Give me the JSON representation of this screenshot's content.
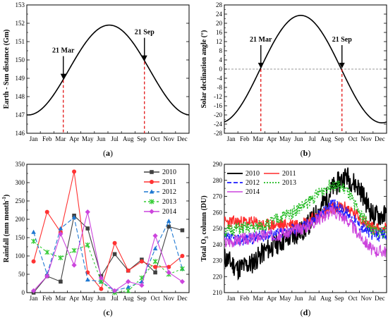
{
  "chart_data": [
    {
      "type": "line",
      "caption_letter": "a",
      "ylabel": "Earth - Sun distance (Gm)",
      "categories": [
        "Jan",
        "Feb",
        "Mar",
        "Apr",
        "May",
        "Jun",
        "Jul",
        "Aug",
        "Sep",
        "Oct",
        "Nov",
        "Dec"
      ],
      "ylim": [
        146,
        153
      ],
      "yticks": [
        146,
        147,
        148,
        149,
        150,
        151,
        152,
        153
      ],
      "series": [
        {
          "curve": "cosine",
          "min": 147.0,
          "max": 151.9,
          "peak_month": 6.1,
          "color": "#000000"
        }
      ],
      "annotations": [
        {
          "label": "21 Mar",
          "x": 2.7,
          "y": 148.9,
          "arrow": true,
          "dashed_line": true,
          "color_line": "#e00000"
        },
        {
          "label": "21 Sep",
          "x": 8.7,
          "y": 149.9,
          "arrow": true,
          "dashed_line": true,
          "color_line": "#e00000"
        }
      ]
    },
    {
      "type": "line",
      "caption_letter": "b",
      "ylabel": "Solar declination angle (°)",
      "categories": [
        "Jan",
        "Feb",
        "Mar",
        "Apr",
        "May",
        "Jun",
        "Jul",
        "Aug",
        "Sep",
        "Oct",
        "Nov",
        "Dec"
      ],
      "ylim": [
        -28,
        28
      ],
      "yticks": [
        -28,
        -24,
        -20,
        -16,
        -12,
        -8,
        -4,
        0,
        4,
        8,
        12,
        16,
        20,
        24,
        28
      ],
      "zero_line": true,
      "series": [
        {
          "curve": "cosine",
          "min": -23.44,
          "max": 23.44,
          "peak_month": 5.65,
          "color": "#000000"
        }
      ],
      "annotations": [
        {
          "label": "21 Mar",
          "x": 2.7,
          "y": 0,
          "arrow": true,
          "dashed_line": true,
          "color_line": "#e00000"
        },
        {
          "label": "21 Sep",
          "x": 8.7,
          "y": 0,
          "arrow": true,
          "dashed_line": true,
          "color_line": "#e00000"
        }
      ]
    },
    {
      "type": "line",
      "caption_letter": "c",
      "ylabel": "Rainfall (mm month",
      "ylabel_sup": "-1",
      "ylabel_end": ")",
      "categories": [
        "Jan",
        "Feb",
        "Mar",
        "Apr",
        "May",
        "Jun",
        "Jul",
        "Aug",
        "Sep",
        "Oct",
        "Nov",
        "Dec"
      ],
      "ylim": [
        0,
        350
      ],
      "yticks": [
        0,
        50,
        100,
        150,
        200,
        250,
        300,
        350
      ],
      "legend": "top-right",
      "series": [
        {
          "name": "2010",
          "color": "#404040",
          "marker": "square",
          "dash": "",
          "values": [
            0,
            45,
            30,
            210,
            175,
            45,
            105,
            60,
            90,
            55,
            180,
            170
          ]
        },
        {
          "name": "2011",
          "color": "#ff3333",
          "marker": "circle",
          "dash": "",
          "values": [
            85,
            220,
            165,
            330,
            55,
            10,
            135,
            60,
            85,
            70,
            70,
            100
          ]
        },
        {
          "name": "2012",
          "color": "#1e78d2",
          "marker": "triangle",
          "dash": "6,3",
          "values": [
            165,
            50,
            175,
            205,
            35,
            30,
            5,
            15,
            30,
            120,
            195,
            65
          ]
        },
        {
          "name": "2013",
          "color": "#33cc33",
          "marker": "star",
          "dash": "3,3",
          "values": [
            140,
            110,
            95,
            115,
            130,
            30,
            0,
            5,
            40,
            85,
            50,
            65
          ]
        },
        {
          "name": "2014",
          "color": "#cc44dd",
          "marker": "diamond",
          "dash": "",
          "values": [
            5,
            45,
            160,
            75,
            220,
            40,
            5,
            30,
            20,
            155,
            55,
            30
          ]
        }
      ]
    },
    {
      "type": "line",
      "caption_letter": "d",
      "ylabel": "Total O",
      "ylabel_sub": "3",
      "ylabel_end": " column (DU)",
      "categories": [
        "Jan",
        "Feb",
        "Mar",
        "Apr",
        "May",
        "Jun",
        "Jul",
        "Aug",
        "Sep",
        "Oct",
        "Nov",
        "Dec"
      ],
      "ylim": [
        210,
        290
      ],
      "yticks": [
        210,
        220,
        230,
        240,
        250,
        260,
        270,
        280,
        290
      ],
      "legend": "top-left",
      "series": [
        {
          "name": "2010",
          "color": "#000000",
          "dash": "",
          "lw": 1.6,
          "baseline": [
            232,
            225,
            228,
            236,
            241,
            245,
            250,
            261,
            275,
            283,
            275,
            258
          ],
          "noise": 7,
          "seed": 11
        },
        {
          "name": "2011",
          "color": "#ff2a2a",
          "dash": "",
          "lw": 1.3,
          "baseline": [
            254,
            254,
            254,
            252,
            252,
            253,
            254,
            258,
            263,
            263,
            257,
            250
          ],
          "noise": 4,
          "seed": 23
        },
        {
          "name": "2012",
          "color": "#1a1aff",
          "dash": "6,3",
          "lw": 1.4,
          "baseline": [
            244,
            243,
            244,
            246,
            247,
            249,
            252,
            258,
            265,
            260,
            252,
            246
          ],
          "noise": 4,
          "seed": 37
        },
        {
          "name": "2013",
          "color": "#22bb22",
          "dash": "2,2",
          "lw": 1.4,
          "baseline": [
            248,
            250,
            250,
            252,
            256,
            260,
            265,
            272,
            278,
            274,
            260,
            248
          ],
          "noise": 4,
          "seed": 51
        },
        {
          "name": "2014",
          "color": "#cc44dd",
          "dash": "",
          "lw": 1.2,
          "baseline": [
            241,
            243,
            244,
            246,
            246,
            248,
            251,
            256,
            261,
            256,
            246,
            236
          ],
          "noise": 4,
          "seed": 67
        }
      ]
    }
  ]
}
